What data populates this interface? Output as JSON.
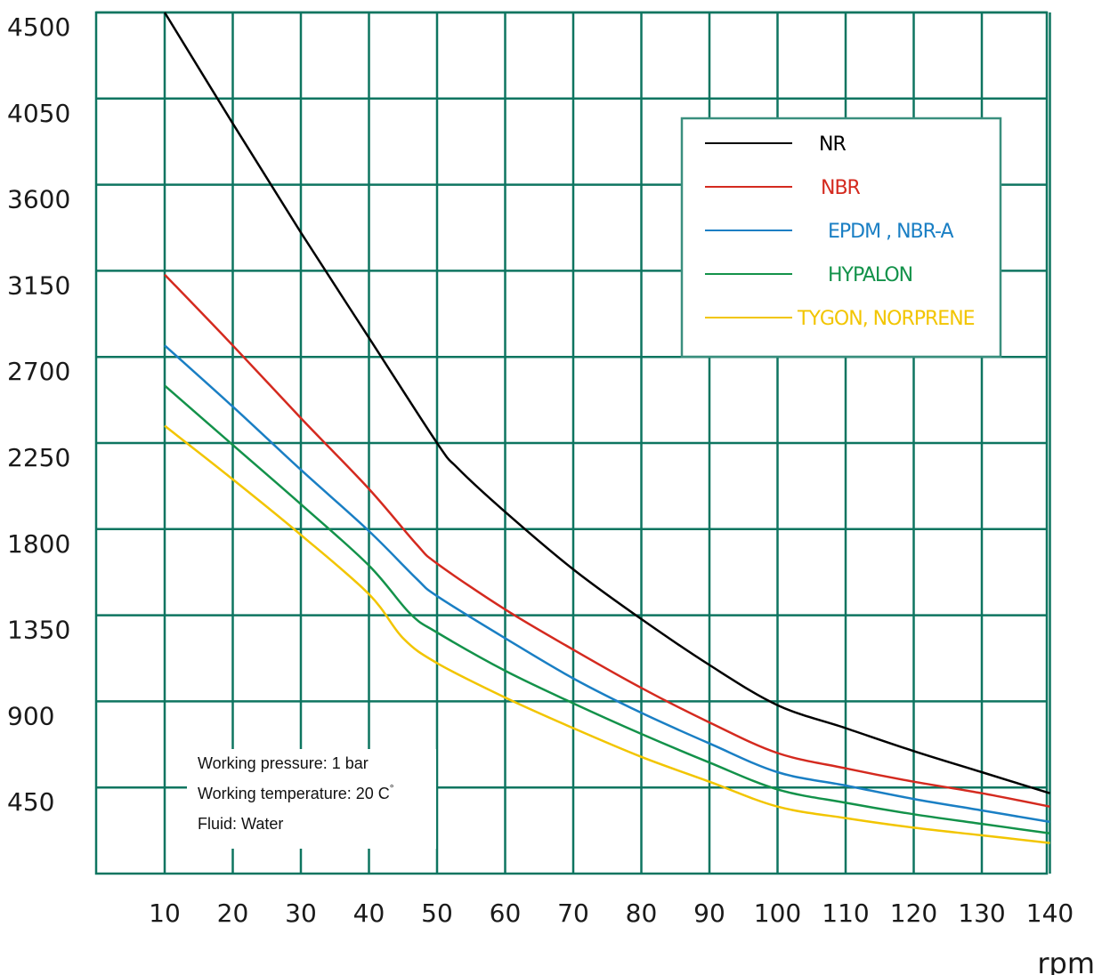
{
  "chart_data": {
    "type": "line",
    "x_unit": "rpm",
    "xticks": [
      "10",
      "20",
      "30",
      "40",
      "50",
      "60",
      "70",
      "80",
      "90",
      "100",
      "110",
      "120",
      "130",
      "140"
    ],
    "yticks": [
      "4500",
      "4050",
      "3600",
      "3150",
      "2700",
      "2250",
      "1800",
      "1350",
      "900",
      "450"
    ],
    "xlim": [
      0,
      140
    ],
    "ylim": [
      0,
      4500
    ],
    "grid": true,
    "legend_position": "top-right",
    "series": [
      {
        "name": "NR",
        "color": "#000000",
        "points": [
          [
            10,
            4500
          ],
          [
            20,
            3920
          ],
          [
            30,
            3350
          ],
          [
            40,
            2800
          ],
          [
            50,
            2250
          ],
          [
            53,
            2120
          ],
          [
            60,
            1890
          ],
          [
            70,
            1590
          ],
          [
            80,
            1330
          ],
          [
            90,
            1090
          ],
          [
            100,
            880
          ],
          [
            110,
            760
          ],
          [
            120,
            640
          ],
          [
            130,
            530
          ],
          [
            140,
            420
          ]
        ]
      },
      {
        "name": "NBR",
        "color": "#d42a1f",
        "points": [
          [
            10,
            3130
          ],
          [
            20,
            2760
          ],
          [
            30,
            2380
          ],
          [
            40,
            2010
          ],
          [
            47,
            1720
          ],
          [
            50,
            1620
          ],
          [
            60,
            1380
          ],
          [
            70,
            1170
          ],
          [
            80,
            970
          ],
          [
            90,
            790
          ],
          [
            100,
            630
          ],
          [
            110,
            550
          ],
          [
            120,
            480
          ],
          [
            130,
            420
          ],
          [
            140,
            350
          ]
        ]
      },
      {
        "name": "EPDM , NBR-A",
        "color": "#1a7fc4",
        "points": [
          [
            10,
            2760
          ],
          [
            20,
            2440
          ],
          [
            30,
            2110
          ],
          [
            40,
            1790
          ],
          [
            47,
            1540
          ],
          [
            50,
            1450
          ],
          [
            60,
            1230
          ],
          [
            70,
            1020
          ],
          [
            80,
            840
          ],
          [
            90,
            680
          ],
          [
            100,
            530
          ],
          [
            110,
            460
          ],
          [
            120,
            390
          ],
          [
            130,
            330
          ],
          [
            140,
            270
          ]
        ]
      },
      {
        "name": "HYPALON",
        "color": "#13924a",
        "points": [
          [
            10,
            2550
          ],
          [
            20,
            2240
          ],
          [
            30,
            1930
          ],
          [
            40,
            1610
          ],
          [
            46,
            1360
          ],
          [
            50,
            1260
          ],
          [
            60,
            1060
          ],
          [
            70,
            890
          ],
          [
            80,
            730
          ],
          [
            90,
            580
          ],
          [
            100,
            440
          ],
          [
            110,
            370
          ],
          [
            120,
            310
          ],
          [
            130,
            260
          ],
          [
            140,
            210
          ]
        ]
      },
      {
        "name": "TYGON, NORPRENE",
        "color": "#f2c500",
        "points": [
          [
            10,
            2340
          ],
          [
            20,
            2060
          ],
          [
            30,
            1770
          ],
          [
            40,
            1460
          ],
          [
            45,
            1230
          ],
          [
            50,
            1100
          ],
          [
            60,
            920
          ],
          [
            70,
            760
          ],
          [
            80,
            610
          ],
          [
            90,
            480
          ],
          [
            100,
            350
          ],
          [
            110,
            290
          ],
          [
            120,
            240
          ],
          [
            130,
            200
          ],
          [
            140,
            160
          ]
        ]
      }
    ],
    "annotations": [
      "Working pressure: 1 bar",
      "Working temperature: 20 C",
      "Fluid: Water"
    ],
    "annotation_superscript": "°"
  },
  "colors": {
    "grid": "#0e7560",
    "legend_border": "#3a8f7e"
  }
}
